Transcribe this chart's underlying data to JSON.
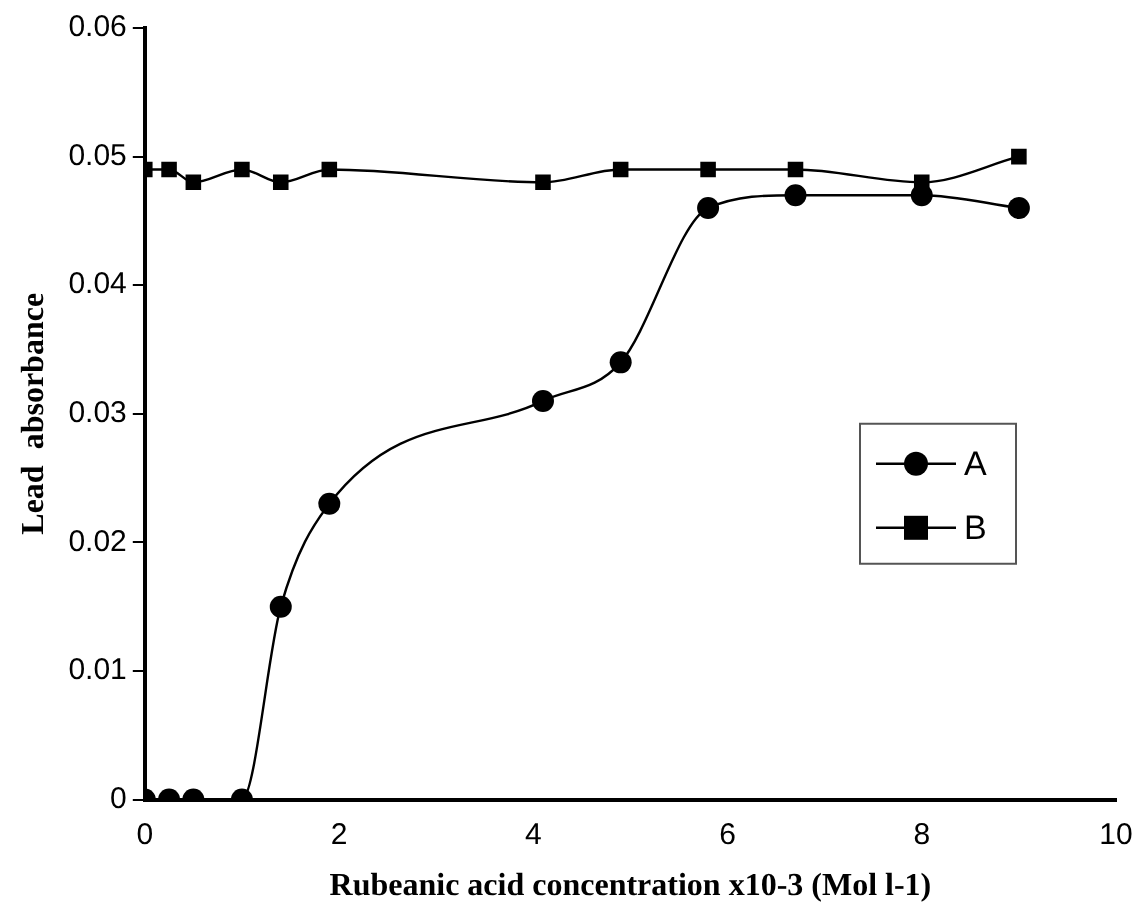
{
  "chart_data": {
    "type": "line",
    "xlabel": "Rubeanic acid concentration x10-3 (Mol l-1)",
    "ylabel": "Lead  absorbance",
    "xlim": [
      0,
      10
    ],
    "xticks": [
      0,
      2,
      4,
      6,
      8,
      10
    ],
    "ylim": [
      0,
      0.06
    ],
    "yticks": [
      {
        "value": 0,
        "label": "0"
      },
      {
        "value": 0.01,
        "label": "0.01"
      },
      {
        "value": 0.02,
        "label": "0.02"
      },
      {
        "value": 0.03,
        "label": "0.03"
      },
      {
        "value": 0.04,
        "label": "0.04"
      },
      {
        "value": 0.05,
        "label": "0.05"
      },
      {
        "value": 0.06,
        "label": "0.06"
      }
    ],
    "grid": false,
    "legend": "right",
    "line_style": "solid",
    "series": [
      {
        "name": "A",
        "color": "#000000",
        "marker": "circle",
        "x": [
          0,
          0.25,
          0.5,
          1,
          1.4,
          1.9,
          4.1,
          4.9,
          5.8,
          6.7,
          8,
          9
        ],
        "values": [
          0,
          0,
          0,
          0,
          0.015,
          0.023,
          0.031,
          0.034,
          0.046,
          0.047,
          0.047,
          0.046
        ]
      },
      {
        "name": "B",
        "color": "#000000",
        "marker": "square",
        "x": [
          0,
          0.25,
          0.5,
          1,
          1.4,
          1.9,
          4.1,
          4.9,
          5.8,
          6.7,
          8,
          9
        ],
        "values": [
          0.049,
          0.049,
          0.048,
          0.049,
          0.048,
          0.049,
          0.048,
          0.049,
          0.049,
          0.049,
          0.048,
          0.05
        ]
      }
    ]
  }
}
